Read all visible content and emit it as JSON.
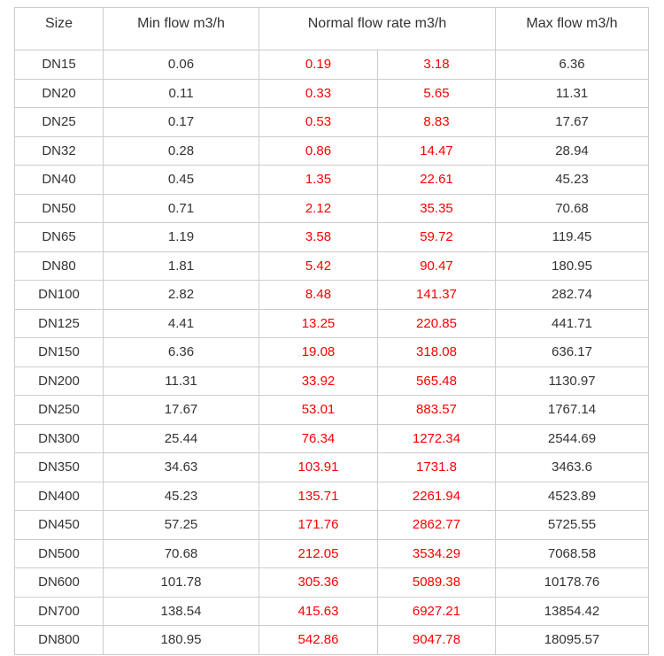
{
  "colors": {
    "red_text": "#fe0000",
    "dark_text": "#333333",
    "border": "#cccccc",
    "background": "#ffffff"
  },
  "chart_data": {
    "type": "table",
    "header": {
      "size": "Size",
      "min_flow": "Min flow m3/h",
      "normal_flow": "Normal flow rate m3/h",
      "max_flow": "Max flow m3/h"
    },
    "layout": {
      "normal_flow_colspan": 2,
      "red_columns": [
        "normal_low",
        "normal_high"
      ]
    },
    "rows": [
      {
        "size": "DN15",
        "min": "0.06",
        "normal_low": "0.19",
        "normal_high": "3.18",
        "max": "6.36"
      },
      {
        "size": "DN20",
        "min": "0.11",
        "normal_low": "0.33",
        "normal_high": "5.65",
        "max": "11.31"
      },
      {
        "size": "DN25",
        "min": "0.17",
        "normal_low": "0.53",
        "normal_high": "8.83",
        "max": "17.67"
      },
      {
        "size": "DN32",
        "min": "0.28",
        "normal_low": "0.86",
        "normal_high": "14.47",
        "max": "28.94"
      },
      {
        "size": "DN40",
        "min": "0.45",
        "normal_low": "1.35",
        "normal_high": "22.61",
        "max": "45.23"
      },
      {
        "size": "DN50",
        "min": "0.71",
        "normal_low": "2.12",
        "normal_high": "35.35",
        "max": "70.68"
      },
      {
        "size": "DN65",
        "min": "1.19",
        "normal_low": "3.58",
        "normal_high": "59.72",
        "max": "119.45"
      },
      {
        "size": "DN80",
        "min": "1.81",
        "normal_low": "5.42",
        "normal_high": "90.47",
        "max": "180.95"
      },
      {
        "size": "DN100",
        "min": "2.82",
        "normal_low": "8.48",
        "normal_high": "141.37",
        "max": "282.74"
      },
      {
        "size": "DN125",
        "min": "4.41",
        "normal_low": "13.25",
        "normal_high": "220.85",
        "max": "441.71"
      },
      {
        "size": "DN150",
        "min": "6.36",
        "normal_low": "19.08",
        "normal_high": "318.08",
        "max": "636.17"
      },
      {
        "size": "DN200",
        "min": "11.31",
        "normal_low": "33.92",
        "normal_high": "565.48",
        "max": "1130.97"
      },
      {
        "size": "DN250",
        "min": "17.67",
        "normal_low": "53.01",
        "normal_high": "883.57",
        "max": "1767.14"
      },
      {
        "size": "DN300",
        "min": "25.44",
        "normal_low": "76.34",
        "normal_high": "1272.34",
        "max": "2544.69"
      },
      {
        "size": "DN350",
        "min": "34.63",
        "normal_low": "103.91",
        "normal_high": "1731.8",
        "max": "3463.6"
      },
      {
        "size": "DN400",
        "min": "45.23",
        "normal_low": "135.71",
        "normal_high": "2261.94",
        "max": "4523.89"
      },
      {
        "size": "DN450",
        "min": "57.25",
        "normal_low": "171.76",
        "normal_high": "2862.77",
        "max": "5725.55"
      },
      {
        "size": "DN500",
        "min": "70.68",
        "normal_low": "212.05",
        "normal_high": "3534.29",
        "max": "7068.58"
      },
      {
        "size": "DN600",
        "min": "101.78",
        "normal_low": "305.36",
        "normal_high": "5089.38",
        "max": "10178.76"
      },
      {
        "size": "DN700",
        "min": "138.54",
        "normal_low": "415.63",
        "normal_high": "6927.21",
        "max": "13854.42"
      },
      {
        "size": "DN800",
        "min": "180.95",
        "normal_low": "542.86",
        "normal_high": "9047.78",
        "max": "18095.57"
      }
    ]
  }
}
